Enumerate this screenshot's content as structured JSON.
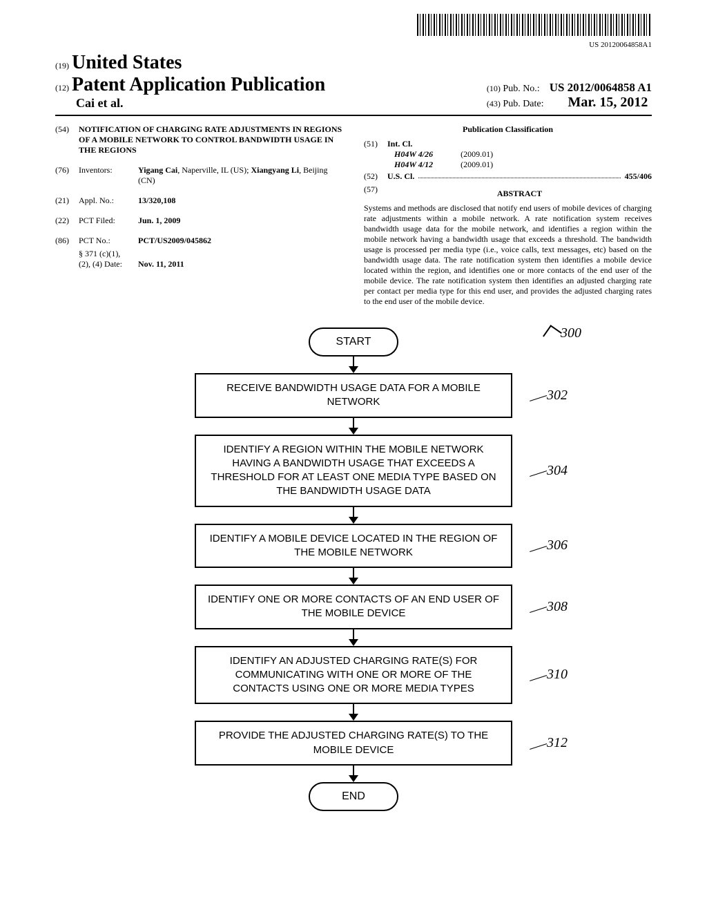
{
  "barcode": {
    "number": "US 20120064858A1"
  },
  "header": {
    "country_prefix": "(19)",
    "country": "United States",
    "pub_type_prefix": "(12)",
    "pub_type": "Patent Application Publication",
    "authors": "Cai et al.",
    "pub_no_prefix": "(10)",
    "pub_no_label": "Pub. No.:",
    "pub_no": "US 2012/0064858 A1",
    "pub_date_prefix": "(43)",
    "pub_date_label": "Pub. Date:",
    "pub_date": "Mar. 15, 2012"
  },
  "fields": {
    "title": {
      "num": "(54)",
      "text": "NOTIFICATION OF CHARGING RATE ADJUSTMENTS IN REGIONS OF A MOBILE NETWORK TO CONTROL BANDWIDTH USAGE IN THE REGIONS"
    },
    "inventors": {
      "num": "(76)",
      "label": "Inventors:",
      "name1": "Yigang Cai",
      "loc1": ", Naperville, IL (US); ",
      "name2": "Xiangyang Li",
      "loc2": ", Beijing (CN)"
    },
    "appl_no": {
      "num": "(21)",
      "label": "Appl. No.:",
      "value": "13/320,108"
    },
    "pct_filed": {
      "num": "(22)",
      "label": "PCT Filed:",
      "value": "Jun. 1, 2009"
    },
    "pct_no": {
      "num": "(86)",
      "label": "PCT No.:",
      "value": "PCT/US2009/045862"
    },
    "sect371": {
      "label1": "§ 371 (c)(1),",
      "label2": "(2), (4) Date:",
      "value": "Nov. 11, 2011"
    }
  },
  "classification": {
    "title": "Publication Classification",
    "intcl": {
      "num": "(51)",
      "label": "Int. Cl.",
      "code1": "H04W 4/26",
      "date1": "(2009.01)",
      "code2": "H04W 4/12",
      "date2": "(2009.01)"
    },
    "uscl": {
      "num": "(52)",
      "label": "U.S. Cl.",
      "value": "455/406"
    },
    "abstract": {
      "num": "(57)",
      "title": "ABSTRACT",
      "text": "Systems and methods are disclosed that notify end users of mobile devices of charging rate adjustments within a mobile network. A rate notification system receives bandwidth usage data for the mobile network, and identifies a region within the mobile network having a bandwidth usage that exceeds a threshold. The bandwidth usage is processed per media type (i.e., voice calls, text messages, etc) based on the bandwidth usage data. The rate notification system then identifies a mobile device located within the region, and identifies one or more contacts of the end user of the mobile device. The rate notification system then identifies an adjusted charging rate per contact per media type for this end user, and provides the adjusted charging rates to the end user of the mobile device."
    }
  },
  "flowchart": {
    "ref_main": "300",
    "start": "START",
    "end": "END",
    "steps": [
      {
        "text": "RECEIVE BANDWIDTH USAGE DATA FOR A MOBILE NETWORK",
        "ref": "302"
      },
      {
        "text": "IDENTIFY A REGION WITHIN THE MOBILE NETWORK HAVING A BANDWIDTH USAGE THAT EXCEEDS A THRESHOLD FOR AT LEAST ONE MEDIA TYPE BASED ON THE BANDWIDTH USAGE DATA",
        "ref": "304"
      },
      {
        "text": "IDENTIFY A MOBILE DEVICE LOCATED IN THE REGION OF THE MOBILE NETWORK",
        "ref": "306"
      },
      {
        "text": "IDENTIFY ONE OR MORE CONTACTS OF AN END USER OF THE MOBILE DEVICE",
        "ref": "308"
      },
      {
        "text": "IDENTIFY AN ADJUSTED CHARGING RATE(S) FOR COMMUNICATING WITH ONE OR MORE OF THE CONTACTS USING ONE OR MORE MEDIA TYPES",
        "ref": "310"
      },
      {
        "text": "PROVIDE THE ADJUSTED CHARGING RATE(S) TO THE MOBILE DEVICE",
        "ref": "312"
      }
    ]
  }
}
